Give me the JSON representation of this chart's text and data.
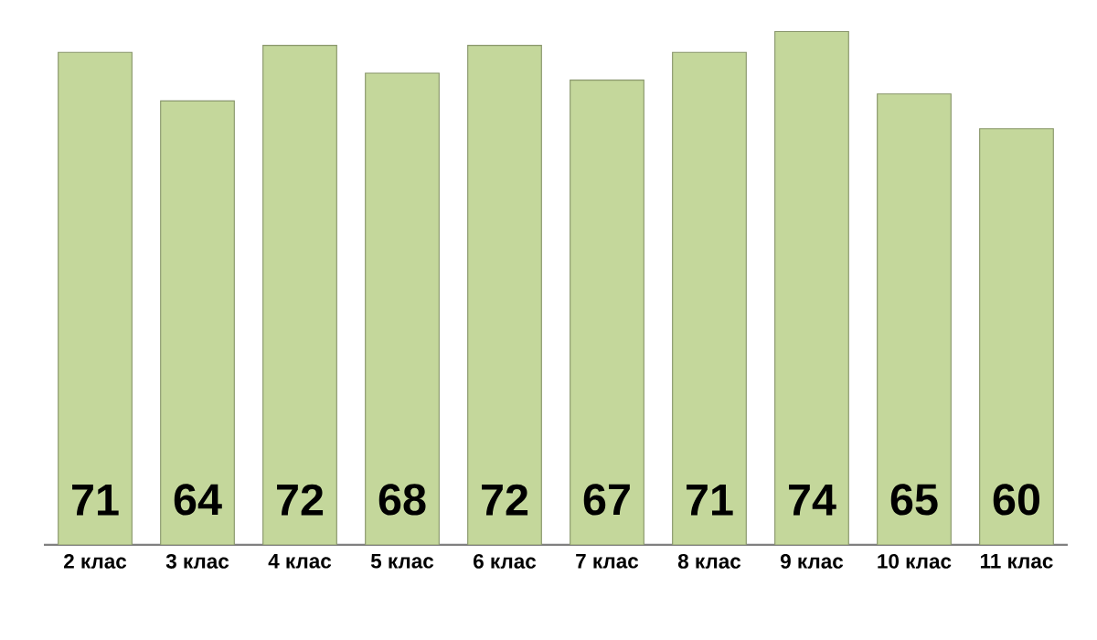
{
  "chart_data": {
    "type": "bar",
    "categories": [
      "2 клас",
      "3 клас",
      "4 клас",
      "5 клас",
      "6 клас",
      "7 клас",
      "8 клас",
      "9 клас",
      "10 клас",
      "11 клас"
    ],
    "values": [
      71,
      64,
      72,
      68,
      72,
      67,
      71,
      74,
      65,
      60
    ],
    "color": "#c4d79b",
    "data_labels": true
  }
}
